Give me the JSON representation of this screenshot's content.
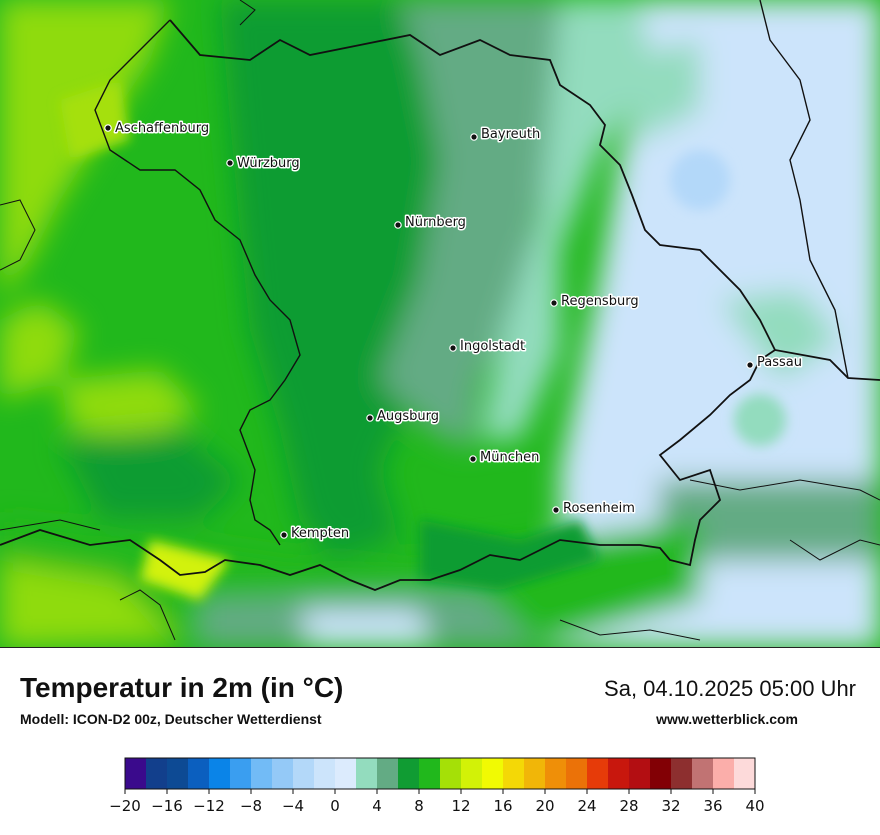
{
  "title": "Temperatur in 2m (in °C)",
  "model": "Modell: ICON-D2 00z, Deutscher Wetterdienst",
  "datetime": "Sa, 04.10.2025 05:00 Uhr",
  "website": "www.wetterblick.com",
  "cities": [
    {
      "name": "Aschaffenburg"
    },
    {
      "name": "Würzburg"
    },
    {
      "name": "Bayreuth"
    },
    {
      "name": "Nürnberg"
    },
    {
      "name": "Regensburg"
    },
    {
      "name": "Ingolstadt"
    },
    {
      "name": "Passau"
    },
    {
      "name": "Augsburg"
    },
    {
      "name": "München"
    },
    {
      "name": "Rosenheim"
    },
    {
      "name": "Kempten"
    }
  ],
  "legend": {
    "colors": [
      "#3a0a8c",
      "#123f8c",
      "#0d4a94",
      "#0b5fbf",
      "#0a84e8",
      "#3a9ef0",
      "#72bbf6",
      "#94c9f7",
      "#b3d8f9",
      "#cce4fb",
      "#dcebfd",
      "#93dcbe",
      "#63ab84",
      "#109c33",
      "#21b81c",
      "#a5e007",
      "#d2f207",
      "#f1fa03",
      "#f4d806",
      "#f1b608",
      "#ef8f08",
      "#eb7208",
      "#e63b09",
      "#c8170d",
      "#b30e12",
      "#820005",
      "#8d2f2f",
      "#c17373",
      "#fbaeaa",
      "#fddada"
    ],
    "tick_labels": [
      "−20",
      "−16",
      "−12",
      "−8",
      "−4",
      "0",
      "4",
      "8",
      "12",
      "16",
      "20",
      "24",
      "28",
      "32",
      "36",
      "40"
    ]
  },
  "colors": {
    "green_bright": "#8fdb10",
    "green_mid": "#21b81c",
    "green_dark": "#109c33",
    "grey_green": "#63ab84",
    "mint": "#93dcbe",
    "pale_blue": "#cce4fb",
    "border": "#111111"
  }
}
